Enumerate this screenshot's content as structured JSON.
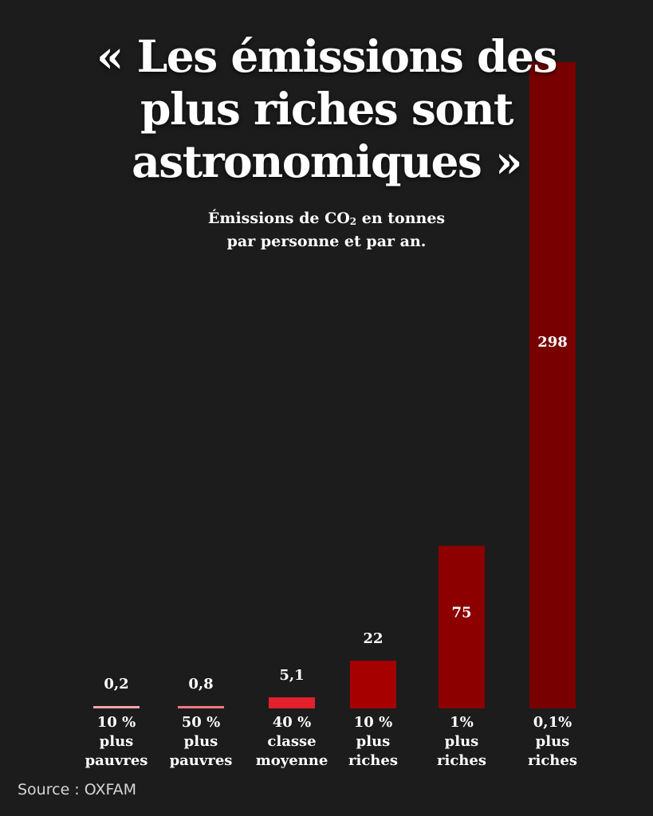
{
  "title_lines": [
    "« Les émissions des",
    "plus riches sont",
    "astronomiques »"
  ],
  "subtitle": {
    "line1_before": "Émissions de CO",
    "line1_sub": "2",
    "line1_after": " en tonnes",
    "line2": "par personne et par an."
  },
  "source": "Source : OXFAM",
  "chart_data": {
    "type": "bar",
    "categories": [
      [
        "10 %",
        "plus",
        "pauvres"
      ],
      [
        "50 %",
        "plus",
        "pauvres"
      ],
      [
        "40 %",
        "classe",
        "moyenne"
      ],
      [
        "10 %",
        "plus",
        "riches"
      ],
      [
        "1%",
        "plus",
        "riches"
      ],
      [
        "0,1%",
        "plus",
        "riches"
      ]
    ],
    "values": [
      0.2,
      0.8,
      5.1,
      22,
      75,
      298
    ],
    "value_labels": [
      "0,2",
      "0,8",
      "5,1",
      "22",
      "75",
      "298"
    ],
    "colors": [
      "#f2a7a7",
      "#f0797d",
      "#e5202d",
      "#a70000",
      "#8c0000",
      "#780000"
    ],
    "ylim": [
      0,
      298
    ],
    "xlabel": "",
    "ylabel": ""
  }
}
